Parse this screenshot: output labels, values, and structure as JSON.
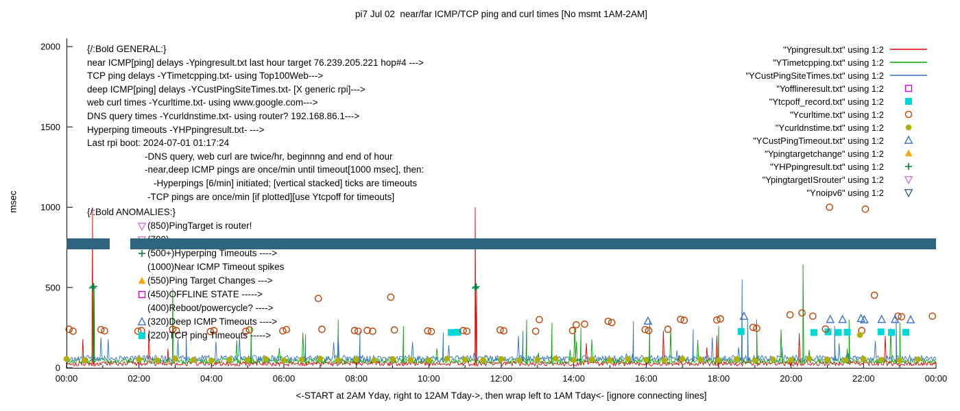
{
  "chart_data": {
    "type": "line",
    "title": "pi7 Jul 02  near/far ICMP/TCP ping and curl times [No msmt 1AM-2AM]",
    "ylabel": "msec",
    "xlabel": "<-START at 2AM Yday, right to 12AM Tday->, then wrap left to 1AM Tday<- [ignore connecting lines]",
    "ylim": [
      0,
      2000
    ],
    "x_hours": [
      0,
      24
    ],
    "axes": {
      "yticks": [
        0,
        500,
        1000,
        1500,
        2000
      ],
      "xticks": [
        "00:00",
        "02:00",
        "04:00",
        "06:00",
        "08:00",
        "10:00",
        "12:00",
        "14:00",
        "16:00",
        "18:00",
        "20:00",
        "22:00",
        "00:00"
      ]
    },
    "series": [
      {
        "label": "\"Ypingresult.txt\" using 1:2",
        "kind": "line",
        "color": "#dd0000",
        "baseline": {
          "seed": 101,
          "base": 12,
          "jitter": 30,
          "spike_chance": 0.012,
          "spike_min": 70,
          "spike_max": 240
        },
        "spikes": [
          [
            0.72,
            1000
          ],
          [
            0.76,
            500
          ],
          [
            11.28,
            1000
          ],
          [
            11.32,
            500
          ]
        ]
      },
      {
        "label": "\"YTimetcpping.txt\" using 1:2",
        "kind": "line",
        "color": "#00a400",
        "baseline": {
          "seed": 202,
          "base": 26,
          "jitter": 34,
          "spike_chance": 0.02,
          "spike_min": 70,
          "spike_max": 260
        },
        "spikes": [
          [
            0.75,
            495
          ],
          [
            2.93,
            495
          ],
          [
            5.1,
            250
          ],
          [
            7.5,
            300
          ],
          [
            9.3,
            260
          ],
          [
            12.7,
            300
          ],
          [
            13.4,
            280
          ],
          [
            14.2,
            250
          ],
          [
            16.1,
            300
          ],
          [
            18.0,
            260
          ],
          [
            19.05,
            300
          ],
          [
            20.33,
            645
          ],
          [
            21.6,
            300
          ],
          [
            23.0,
            280
          ]
        ]
      },
      {
        "label": "\"YCustPingSiteTimes.txt\" using 1:2",
        "kind": "line",
        "color": "#2d6fc2",
        "baseline": {
          "seed": 303,
          "base": 40,
          "jitter": 38,
          "spike_chance": 0.025,
          "spike_min": 60,
          "spike_max": 230
        },
        "spikes": [
          [
            3.3,
            230
          ],
          [
            6.6,
            210
          ],
          [
            8.1,
            230
          ],
          [
            10.4,
            220
          ],
          [
            12.6,
            230
          ],
          [
            15.65,
            290
          ],
          [
            17.3,
            240
          ],
          [
            18.65,
            550
          ],
          [
            18.8,
            300
          ],
          [
            21.2,
            260
          ],
          [
            22.9,
            300
          ]
        ]
      },
      {
        "label": "\"Yofflineresult.txt\" using 1:2",
        "kind": "marker",
        "shape": "square-open",
        "color": "#d500d5",
        "points": []
      },
      {
        "label": "\"Ytcpoff_record.txt\" using 1:2",
        "kind": "marker",
        "shape": "square-filled",
        "color": "#00d8d8",
        "points": [
          [
            10.62,
            220
          ],
          [
            10.8,
            222
          ],
          [
            18.62,
            226
          ],
          [
            20.63,
            220
          ],
          [
            21.02,
            224
          ],
          [
            21.3,
            220
          ],
          [
            21.55,
            222
          ],
          [
            22.48,
            224
          ],
          [
            22.77,
            220
          ],
          [
            23.17,
            221
          ]
        ]
      },
      {
        "label": "\"Ycurltime.txt\" using 1:2",
        "kind": "marker",
        "shape": "circle-open",
        "color": "#c04000",
        "points": [
          [
            0.07,
            240
          ],
          [
            0.18,
            228
          ],
          [
            0.95,
            238
          ],
          [
            1.05,
            230
          ],
          [
            1.97,
            228
          ],
          [
            2.07,
            232
          ],
          [
            2.93,
            240
          ],
          [
            3.03,
            232
          ],
          [
            3.97,
            226
          ],
          [
            4.07,
            232
          ],
          [
            4.95,
            228
          ],
          [
            5.05,
            236
          ],
          [
            5.97,
            230
          ],
          [
            6.07,
            238
          ],
          [
            6.95,
            432
          ],
          [
            7.05,
            240
          ],
          [
            7.95,
            232
          ],
          [
            8.05,
            228
          ],
          [
            8.3,
            233
          ],
          [
            8.45,
            228
          ],
          [
            8.95,
            440
          ],
          [
            9.05,
            236
          ],
          [
            9.97,
            230
          ],
          [
            10.07,
            226
          ],
          [
            10.95,
            232
          ],
          [
            11.05,
            228
          ],
          [
            11.97,
            236
          ],
          [
            12.07,
            230
          ],
          [
            12.95,
            228
          ],
          [
            13.05,
            300
          ],
          [
            13.97,
            232
          ],
          [
            14.07,
            268
          ],
          [
            14.3,
            272
          ],
          [
            14.95,
            290
          ],
          [
            15.05,
            282
          ],
          [
            15.97,
            238
          ],
          [
            16.07,
            232
          ],
          [
            16.6,
            240
          ],
          [
            16.95,
            302
          ],
          [
            17.05,
            296
          ],
          [
            17.95,
            298
          ],
          [
            18.05,
            305
          ],
          [
            18.95,
            252
          ],
          [
            19.05,
            246
          ],
          [
            19.97,
            330
          ],
          [
            20.3,
            342
          ],
          [
            20.6,
            322
          ],
          [
            20.95,
            242
          ],
          [
            21.06,
            1000
          ],
          [
            21.95,
            232
          ],
          [
            22.05,
            988
          ],
          [
            22.3,
            452
          ],
          [
            22.95,
            322
          ],
          [
            23.05,
            318
          ],
          [
            23.9,
            322
          ]
        ]
      },
      {
        "label": "\"Ycurldnstime.txt\" using 1:2",
        "kind": "marker",
        "shape": "circle-filled",
        "color": "#b0b000",
        "points": [
          [
            0.0,
            55
          ],
          [
            0.5,
            48
          ],
          [
            2.0,
            52
          ],
          [
            2.5,
            47
          ],
          [
            3.0,
            58
          ],
          [
            3.5,
            50
          ],
          [
            4.0,
            46
          ],
          [
            4.5,
            52
          ],
          [
            5.0,
            49
          ],
          [
            5.5,
            55
          ],
          [
            6.0,
            47
          ],
          [
            6.5,
            52
          ],
          [
            7.0,
            58
          ],
          [
            7.5,
            49
          ],
          [
            8.0,
            53
          ],
          [
            8.5,
            47
          ],
          [
            9.0,
            55
          ],
          [
            9.5,
            50
          ],
          [
            10.0,
            48
          ],
          [
            10.5,
            57
          ],
          [
            11.0,
            52
          ],
          [
            11.5,
            49
          ],
          [
            12.0,
            55
          ],
          [
            12.5,
            47
          ],
          [
            13.0,
            52
          ],
          [
            13.5,
            58
          ],
          [
            14.0,
            49
          ],
          [
            14.5,
            53
          ],
          [
            15.0,
            47
          ],
          [
            15.5,
            55
          ],
          [
            16.0,
            50
          ],
          [
            16.5,
            48
          ],
          [
            17.0,
            56
          ],
          [
            17.5,
            52
          ],
          [
            18.0,
            49
          ],
          [
            18.5,
            55
          ],
          [
            19.0,
            47
          ],
          [
            19.5,
            53
          ],
          [
            20.0,
            50
          ],
          [
            20.5,
            58
          ],
          [
            21.0,
            52
          ],
          [
            21.5,
            48
          ],
          [
            21.9,
            205
          ],
          [
            22.0,
            55
          ],
          [
            22.5,
            50
          ],
          [
            23.0,
            47
          ],
          [
            23.5,
            53
          ]
        ]
      },
      {
        "label": "\"YCustPingTimeout.txt\" using 1:2",
        "kind": "marker",
        "shape": "triangle-up-open",
        "color": "#3a6fc8",
        "points": [
          [
            16.05,
            290
          ],
          [
            18.7,
            320
          ],
          [
            21.08,
            300
          ],
          [
            21.42,
            300
          ],
          [
            21.93,
            306
          ],
          [
            22.02,
            298
          ],
          [
            22.5,
            300
          ],
          [
            22.87,
            300
          ],
          [
            23.3,
            298
          ]
        ]
      },
      {
        "label": "\"Ypingtargetchange\" using 1:2",
        "kind": "marker",
        "shape": "triangle-up-filled",
        "color": "#ffa500",
        "points": []
      },
      {
        "label": "\"YHPpingresult.txt\" using 1:2",
        "kind": "marker",
        "shape": "plus",
        "color": "#008040",
        "points": [
          [
            0.72,
            498
          ],
          [
            0.75,
            507
          ],
          [
            11.28,
            497
          ],
          [
            11.31,
            505
          ]
        ]
      },
      {
        "label": "\"YpingtargetISrouter\" using 1:2",
        "kind": "marker",
        "shape": "triangle-down-open",
        "color": "#d078d0",
        "points": []
      },
      {
        "label": "\"Ynoipv6\" using 1:2",
        "kind": "band",
        "shape": "triangle-down-open",
        "color": "#2e6480",
        "value": 770,
        "half_height": 34,
        "segments": [
          [
            0,
            1.2
          ],
          [
            1.76,
            24
          ]
        ]
      }
    ]
  },
  "general": {
    "lines": [
      {
        "text": "{/:Bold GENERAL:}",
        "indent": 0
      },
      {
        "text": "near ICMP[ping] delays -Ypingresult.txt last hour target 76.239.205.221 hop#4 --->",
        "indent": 0
      },
      {
        "text": "TCP ping delays -YTimetcpping.txt- using Top100Web--->",
        "indent": 0
      },
      {
        "text": "deep ICMP[ping] delays -YCustPingSiteTimes.txt- [X generic rpi]--->",
        "indent": 0
      },
      {
        "text": "web curl times -Ycurltime.txt- using www.google.com--->",
        "indent": 0
      },
      {
        "text": "DNS query times -Ycurldnstime.txt- using router? 192.168.86.1--->",
        "indent": 0
      },
      {
        "text": "Hyperping timeouts -YHPpingresult.txt- --->",
        "indent": 0
      },
      {
        "text": "Last rpi boot: 2024-07-01 01:17:24",
        "indent": 0
      },
      {
        "text": "-DNS query, web curl are twice/hr, beginnng and end of hour",
        "indent": 1
      },
      {
        "text": "-near,deep ICMP pings are once/min until timeout[1000 msec], then:",
        "indent": 1
      },
      {
        "text": "-Hyperpings [6/min] initiated; [vertical stacked] ticks are timeouts",
        "indent": 2
      },
      {
        "text": "-TCP pings are once/min [if plotted][use Ytcpoff for timeouts]",
        "indent": 3
      }
    ]
  },
  "anomalies": {
    "header": "{/:Bold ANOMALIES:}",
    "rows": [
      {
        "marker": "triangle-down-open",
        "color": "#d078d0",
        "text": "(850)PingTarget is router!"
      },
      {
        "marker": "triangle-down-open",
        "color": "#d078d0",
        "text": "(700)"
      },
      {
        "marker": "plus",
        "color": "#008040",
        "text": "(500+)Hyperping Timeouts ---->"
      },
      {
        "marker": null,
        "color": null,
        "text": "(1000)Near ICMP Timeout spikes"
      },
      {
        "marker": "triangle-up-filled",
        "color": "#ffa500",
        "text": "(550)Ping Target Changes --->"
      },
      {
        "marker": "square-open",
        "color": "#d500d5",
        "text": "(450)OFFLINE STATE ----->"
      },
      {
        "marker": null,
        "color": null,
        "text": "(400)Reboot/powercycle? ---->"
      },
      {
        "marker": "triangle-up-open",
        "color": "#3a6fc8",
        "text": "(320)Deep ICMP Timeouts ---->"
      },
      {
        "marker": "square-filled",
        "color": "#00d8d8",
        "text": "(220)TCP ping Timeouts ----->"
      }
    ]
  }
}
